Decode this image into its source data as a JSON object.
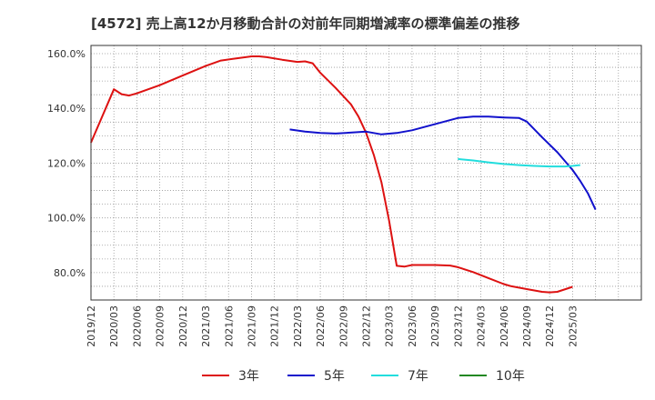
{
  "chart_data": {
    "type": "line",
    "title": "[4572]  売上高12か月移動合計の対前年同期増減率の標準偏差の推移",
    "xlabel": "",
    "ylabel": "",
    "ylim": [
      70,
      163
    ],
    "yticks": [
      80,
      100,
      120,
      140,
      160
    ],
    "ytick_labels": [
      "80.0%",
      "100.0%",
      "120.0%",
      "140.0%",
      "160.0%"
    ],
    "x_range_months": [
      0,
      72
    ],
    "xticks": [
      "2019/12",
      "2020/03",
      "2020/06",
      "2020/09",
      "2020/12",
      "2021/03",
      "2021/06",
      "2021/09",
      "2021/12",
      "2022/03",
      "2022/06",
      "2022/09",
      "2022/12",
      "2023/03",
      "2023/06",
      "2023/09",
      "2023/12",
      "2024/03",
      "2024/06",
      "2024/09",
      "2024/12",
      "2025/03"
    ],
    "grid": true,
    "legend_position": "bottom",
    "series": [
      {
        "name": "3年",
        "color": "#dd1111",
        "points": [
          [
            0,
            127.5
          ],
          [
            3,
            147
          ],
          [
            4,
            145.2
          ],
          [
            5,
            144.7
          ],
          [
            6,
            145.5
          ],
          [
            9,
            148.5
          ],
          [
            12,
            152
          ],
          [
            15,
            155.5
          ],
          [
            17,
            157.5
          ],
          [
            19,
            158.3
          ],
          [
            21,
            159
          ],
          [
            22,
            159
          ],
          [
            23,
            158.7
          ],
          [
            25,
            157.8
          ],
          [
            27,
            157
          ],
          [
            28,
            157.2
          ],
          [
            29,
            156.5
          ],
          [
            30,
            153
          ],
          [
            32,
            147.5
          ],
          [
            34,
            141.5
          ],
          [
            35,
            137
          ],
          [
            36,
            131
          ],
          [
            37,
            123
          ],
          [
            38,
            113
          ],
          [
            39,
            99
          ],
          [
            40,
            82.5
          ],
          [
            41,
            82.2
          ],
          [
            42,
            82.8
          ],
          [
            45,
            82.8
          ],
          [
            47,
            82.6
          ],
          [
            48,
            82
          ],
          [
            50,
            80.2
          ],
          [
            52,
            78
          ],
          [
            54,
            75.8
          ],
          [
            55,
            75
          ],
          [
            57,
            74
          ],
          [
            59,
            73
          ],
          [
            60,
            72.8
          ],
          [
            61,
            73
          ],
          [
            63,
            74.8
          ]
        ]
      },
      {
        "name": "5年",
        "color": "#1111cc",
        "points": [
          [
            26,
            132.3
          ],
          [
            28,
            131.5
          ],
          [
            30,
            131
          ],
          [
            32,
            130.8
          ],
          [
            36,
            131.5
          ],
          [
            38,
            130.5
          ],
          [
            40,
            131
          ],
          [
            42,
            132
          ],
          [
            44,
            133.5
          ],
          [
            46,
            135
          ],
          [
            48,
            136.5
          ],
          [
            50,
            137
          ],
          [
            52,
            137
          ],
          [
            54,
            136.7
          ],
          [
            56,
            136.5
          ],
          [
            57,
            135.2
          ],
          [
            59,
            129.5
          ],
          [
            61,
            124
          ],
          [
            63,
            117.5
          ],
          [
            64,
            113.5
          ],
          [
            65,
            109
          ],
          [
            66,
            103
          ]
        ]
      },
      {
        "name": "7年",
        "color": "#22dddd",
        "points": [
          [
            48,
            121.5
          ],
          [
            50,
            121
          ],
          [
            52,
            120.3
          ],
          [
            54,
            119.7
          ],
          [
            56,
            119.3
          ],
          [
            58,
            119
          ],
          [
            60,
            118.8
          ],
          [
            62,
            118.8
          ],
          [
            63,
            119
          ],
          [
            64,
            119.3
          ]
        ]
      },
      {
        "name": "10年",
        "color": "#228822",
        "points": []
      }
    ]
  }
}
